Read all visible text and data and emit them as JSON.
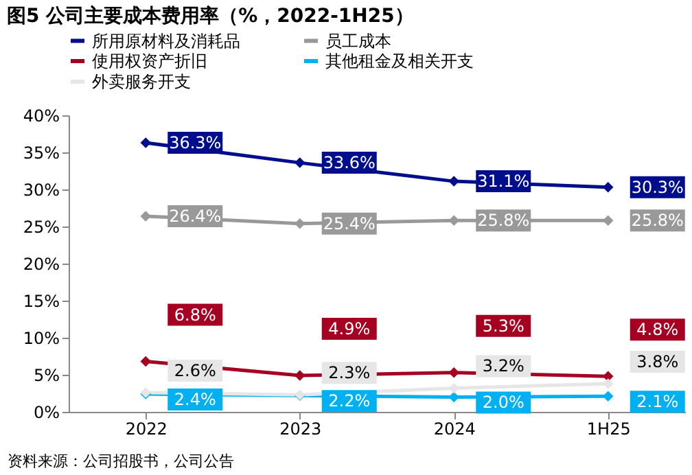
{
  "chart_data": {
    "type": "line",
    "title": "图5 公司主要成本费用率（%，2022-1H25）",
    "categories": [
      "2022",
      "2023",
      "2024",
      "1H25"
    ],
    "series": [
      {
        "name": "所用原材料及消耗品",
        "color": "#000e8c",
        "values": [
          36.3,
          33.6,
          31.1,
          30.3
        ],
        "value_labels": [
          "36.3%",
          "33.6%",
          "31.1%",
          "30.3%"
        ]
      },
      {
        "name": "员工成本",
        "color": "#999999",
        "values": [
          26.4,
          25.4,
          25.8,
          25.8
        ],
        "value_labels": [
          "26.4%",
          "25.4%",
          "25.8%",
          "25.8%"
        ]
      },
      {
        "name": "使用权资产折旧",
        "color": "#a50021",
        "values": [
          6.8,
          4.9,
          5.3,
          4.8
        ],
        "value_labels": [
          "6.8%",
          "4.9%",
          "5.3%",
          "4.8%"
        ]
      },
      {
        "name": "其他租金及相关开支",
        "color": "#00b0f0",
        "values": [
          2.4,
          2.2,
          2.0,
          2.1
        ],
        "value_labels": [
          "2.4%",
          "2.2%",
          "2.0%",
          "2.1%"
        ]
      },
      {
        "name": "外卖服务开支",
        "color": "#e6e6e6",
        "values": [
          2.6,
          2.3,
          3.2,
          3.8
        ],
        "value_labels": [
          "2.6%",
          "2.3%",
          "3.2%",
          "3.8%"
        ]
      }
    ],
    "ylim": [
      0,
      40
    ],
    "yticks": [
      {
        "value": 0,
        "label": "0%"
      },
      {
        "value": 5,
        "label": "5%"
      },
      {
        "value": 10,
        "label": "10%"
      },
      {
        "value": 15,
        "label": "15%"
      },
      {
        "value": 20,
        "label": "20%"
      },
      {
        "value": 25,
        "label": "25%"
      },
      {
        "value": 30,
        "label": "30%"
      },
      {
        "value": 35,
        "label": "35%"
      },
      {
        "value": 40,
        "label": "40%"
      }
    ],
    "data_labels": true,
    "marker": "diamond",
    "legend": "top",
    "grid": false,
    "annotations": [
      "资料来源：公司招股书，公司公告"
    ]
  }
}
